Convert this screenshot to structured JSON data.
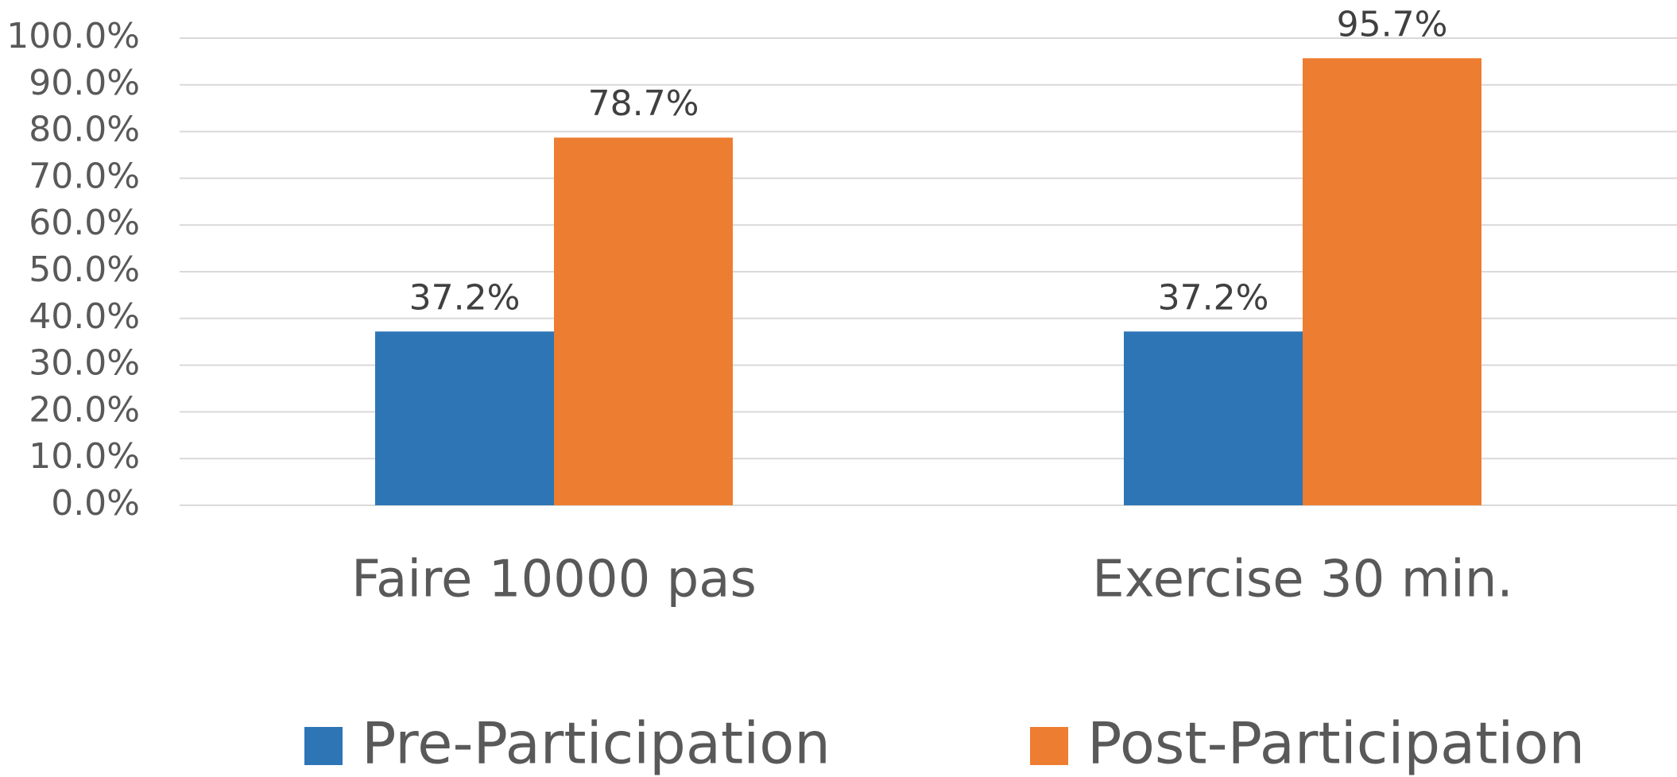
{
  "chart_data": {
    "type": "bar",
    "categories": [
      "Faire 10000 pas",
      "Exercise 30 min."
    ],
    "series": [
      {
        "name": "Pre-Participation",
        "color": "#2e75b6",
        "values": [
          37.2,
          37.2
        ],
        "value_labels": [
          "37.2%",
          "37.2%"
        ]
      },
      {
        "name": "Post-Participation",
        "color": "#ed7d31",
        "values": [
          78.7,
          95.7
        ],
        "value_labels": [
          "78.7%",
          "95.7%"
        ]
      }
    ],
    "ylim": [
      0,
      100
    ],
    "yticks": [
      {
        "value": 0,
        "label": "0.0%"
      },
      {
        "value": 10,
        "label": "10.0%"
      },
      {
        "value": 20,
        "label": "20.0%"
      },
      {
        "value": 30,
        "label": "30.0%"
      },
      {
        "value": 40,
        "label": "40.0%"
      },
      {
        "value": 50,
        "label": "50.0%"
      },
      {
        "value": 60,
        "label": "60.0%"
      },
      {
        "value": 70,
        "label": "70.0%"
      },
      {
        "value": 80,
        "label": "80.0%"
      },
      {
        "value": 90,
        "label": "90.0%"
      },
      {
        "value": 100,
        "label": "100.0%"
      }
    ],
    "grid": true,
    "legend": "bottom"
  }
}
